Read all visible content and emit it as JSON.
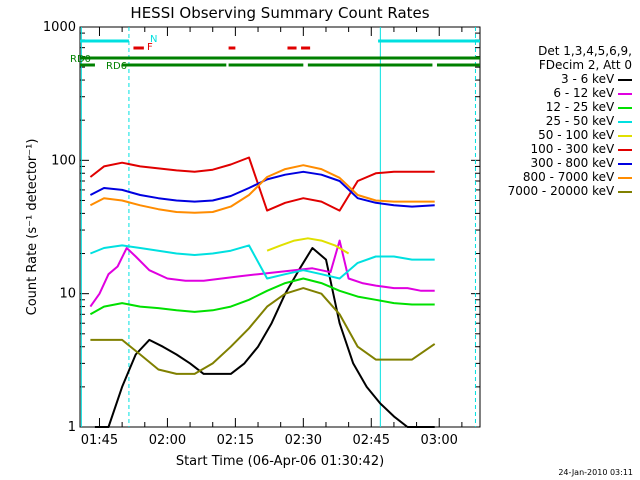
{
  "chart_data": {
    "type": "line",
    "title": "HESSI Observing Summary Count Rates",
    "xlabel": "Start Time (06-Apr-06 01:30:42)",
    "ylabel": "Count Rate (s⁻¹ detector⁻¹)",
    "y_scale": "log",
    "ylim": [
      1,
      1000
    ],
    "xlim_minutes": [
      100.7,
      189.0
    ],
    "x_tick_labels": [
      "01:45",
      "02:00",
      "02:15",
      "02:30",
      "02:45",
      "03:00"
    ],
    "x_tick_minutes": [
      105,
      120,
      135,
      150,
      165,
      180
    ],
    "y_tick_labels": [
      "1",
      "10",
      "100",
      "1000"
    ],
    "y_tick_values": [
      1,
      10,
      100,
      1000
    ],
    "grid": false,
    "legend_position": "right",
    "legend_header": [
      "Det 1,3,4,5,6,9,",
      "FDecim 2, Att 0"
    ],
    "series": [
      {
        "name": "3 - 6 keV",
        "color": "#000000",
        "x": [
          104,
          107,
          110,
          113,
          116,
          119,
          122,
          125,
          128,
          131,
          134,
          137,
          140,
          143,
          146,
          149,
          152,
          155,
          158,
          161,
          164,
          167,
          170,
          173,
          176,
          179
        ],
        "values": [
          1,
          1,
          2,
          3.5,
          4.5,
          4,
          3.5,
          3,
          2.5,
          2.5,
          2.5,
          3,
          4,
          6,
          10,
          15,
          22,
          18,
          6,
          3,
          2,
          1.5,
          1.2,
          1,
          1,
          1
        ]
      },
      {
        "name": "6 - 12 keV",
        "color": "#e000e0",
        "x": [
          103,
          105,
          107,
          109,
          111,
          113,
          116,
          120,
          124,
          128,
          132,
          136,
          140,
          144,
          148,
          152,
          156,
          158,
          160,
          163,
          166,
          170,
          173,
          176,
          179
        ],
        "values": [
          8,
          10,
          14,
          16,
          22,
          19,
          15,
          13,
          12.5,
          12.5,
          13,
          13.5,
          14,
          14.5,
          15,
          15.5,
          14.5,
          25,
          13,
          12,
          11.5,
          11,
          11,
          10.5,
          10.5
        ]
      },
      {
        "name": "12 - 25 keV",
        "color": "#00e000",
        "x": [
          103,
          106,
          110,
          114,
          118,
          122,
          126,
          130,
          134,
          138,
          142,
          146,
          150,
          154,
          158,
          162,
          166,
          170,
          174,
          179
        ],
        "values": [
          7,
          8,
          8.5,
          8,
          7.8,
          7.5,
          7.3,
          7.5,
          8,
          9,
          10.5,
          12,
          13,
          12,
          10.5,
          9.5,
          9,
          8.5,
          8.3,
          8.3
        ]
      },
      {
        "name": "25 - 50 keV",
        "color": "#00e0e0",
        "x": [
          103,
          106,
          110,
          114,
          118,
          122,
          126,
          130,
          134,
          138,
          142,
          146,
          150,
          154,
          158,
          162,
          166,
          170,
          174,
          179
        ],
        "values": [
          20,
          22,
          23,
          22,
          21,
          20,
          19.5,
          20,
          21,
          23,
          13,
          14,
          15,
          14,
          13,
          17,
          19,
          19,
          18,
          18
        ]
      },
      {
        "name": "50 - 100 keV",
        "color": "#e0e000",
        "x": [
          142,
          145,
          148,
          151,
          154,
          157,
          160
        ],
        "values": [
          21,
          23,
          25,
          26,
          25,
          23,
          20
        ]
      },
      {
        "name": "100 - 300 keV",
        "color": "#e00000",
        "x": [
          103,
          106,
          110,
          114,
          118,
          122,
          126,
          130,
          134,
          138,
          142,
          146,
          150,
          154,
          158,
          162,
          166,
          170,
          174,
          179
        ],
        "values": [
          75,
          90,
          96,
          90,
          87,
          84,
          82,
          85,
          93,
          105,
          42,
          48,
          52,
          49,
          42,
          70,
          80,
          82,
          82,
          82
        ]
      },
      {
        "name": "300 - 800 keV",
        "color": "#0000e0",
        "x": [
          103,
          106,
          110,
          114,
          118,
          122,
          126,
          130,
          134,
          138,
          142,
          146,
          150,
          154,
          158,
          162,
          166,
          170,
          174,
          179
        ],
        "values": [
          55,
          62,
          60,
          55,
          52,
          50,
          49,
          50,
          54,
          62,
          72,
          78,
          82,
          78,
          70,
          52,
          48,
          46,
          45,
          46
        ]
      },
      {
        "name": "800 - 7000 keV",
        "color": "#ff8c00",
        "x": [
          103,
          106,
          110,
          114,
          118,
          122,
          126,
          130,
          134,
          138,
          142,
          146,
          150,
          154,
          158,
          162,
          166,
          170,
          174,
          179
        ],
        "values": [
          46,
          52,
          50,
          46,
          43,
          41,
          40.5,
          41,
          45,
          55,
          75,
          86,
          92,
          86,
          74,
          55,
          50,
          49,
          49,
          49
        ]
      },
      {
        "name": "7000 - 20000 keV",
        "color": "#808000",
        "x": [
          103,
          106,
          110,
          114,
          118,
          122,
          126,
          130,
          134,
          138,
          142,
          146,
          150,
          154,
          158,
          162,
          166,
          170,
          174,
          179
        ],
        "values": [
          4.5,
          4.5,
          4.5,
          3.5,
          2.7,
          2.5,
          2.5,
          3,
          4,
          5.5,
          8,
          10,
          11,
          10,
          7,
          4,
          3.2,
          3.2,
          3.2,
          4.2
        ]
      }
    ],
    "flag_labels": [
      {
        "text": "N",
        "color": "#00e0e0"
      },
      {
        "text": "F",
        "color": "#e00000"
      },
      {
        "text": "RD0",
        "color": "#008000"
      },
      {
        "text": "RD6",
        "color": "#008000"
      }
    ],
    "flags": {
      "n_segments": [
        [
          100.7,
          111.5
        ],
        [
          166.5,
          189.0
        ]
      ],
      "f_segments": [
        [
          112.5,
          114.8
        ],
        [
          133.5,
          135.0
        ],
        [
          146.5,
          148.5
        ],
        [
          149.5,
          151.5
        ]
      ],
      "rd0_segments": [
        [
          100.7,
          189.0
        ]
      ],
      "rd6_segments": [
        [
          100.7,
          104.0
        ],
        [
          110.0,
          133.0
        ],
        [
          133.5,
          150.0
        ],
        [
          151.0,
          178.5
        ],
        [
          179.5,
          189.0
        ]
      ]
    },
    "vertical_markers": {
      "solid": [
        101.0,
        167.0
      ],
      "dashed": [
        111.5,
        188.0
      ],
      "color": "#00e0e0"
    }
  },
  "footer_timestamp": "24-Jan-2010 03:11"
}
